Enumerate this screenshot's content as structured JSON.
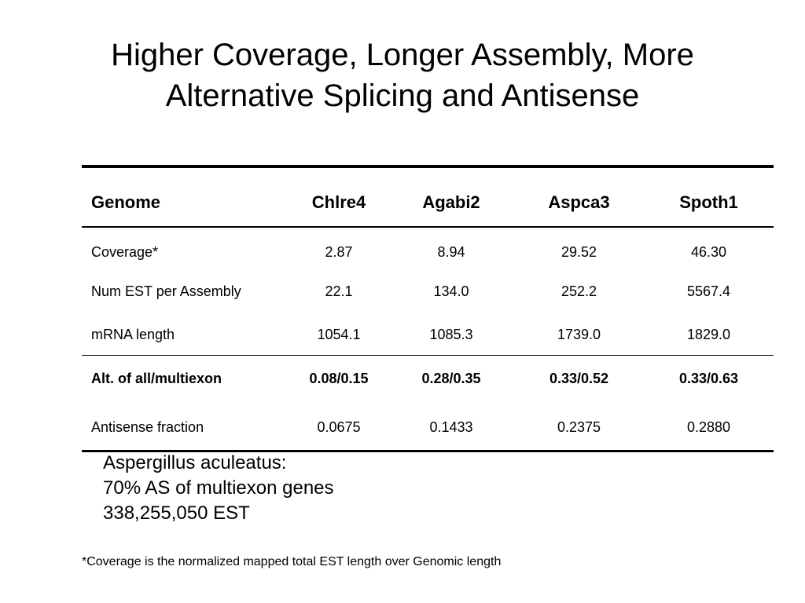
{
  "slide": {
    "title_line1": "Higher Coverage, Longer Assembly, More",
    "title_line2": "Alternative Splicing and Antisense"
  },
  "table": {
    "columns": [
      "Genome",
      "Chlre4",
      "Agabi2",
      "Aspca3",
      "Spoth1"
    ],
    "rows": [
      {
        "label": "Coverage*",
        "values": [
          "2.87",
          "8.94",
          "29.52",
          "46.30"
        ]
      },
      {
        "label": "Num EST per Assembly",
        "values": [
          "22.1",
          "134.0",
          "252.2",
          "5567.4"
        ]
      },
      {
        "label": "mRNA length",
        "values": [
          "1054.1",
          "1085.3",
          "1739.0",
          "1829.0"
        ]
      },
      {
        "label": "Alt. of all/multiexon",
        "values": [
          "0.08/0.15",
          "0.28/0.35",
          "0.33/0.52",
          "0.33/0.63"
        ]
      },
      {
        "label": "Antisense fraction",
        "values": [
          "0.0675",
          "0.1433",
          "0.2375",
          "0.2880"
        ]
      }
    ]
  },
  "notes": {
    "line1": "Aspergillus aculeatus:",
    "line2": "70% AS of multiexon genes",
    "line3": "338,255,050 EST"
  },
  "footnote": "*Coverage is the normalized mapped total EST length over Genomic length"
}
